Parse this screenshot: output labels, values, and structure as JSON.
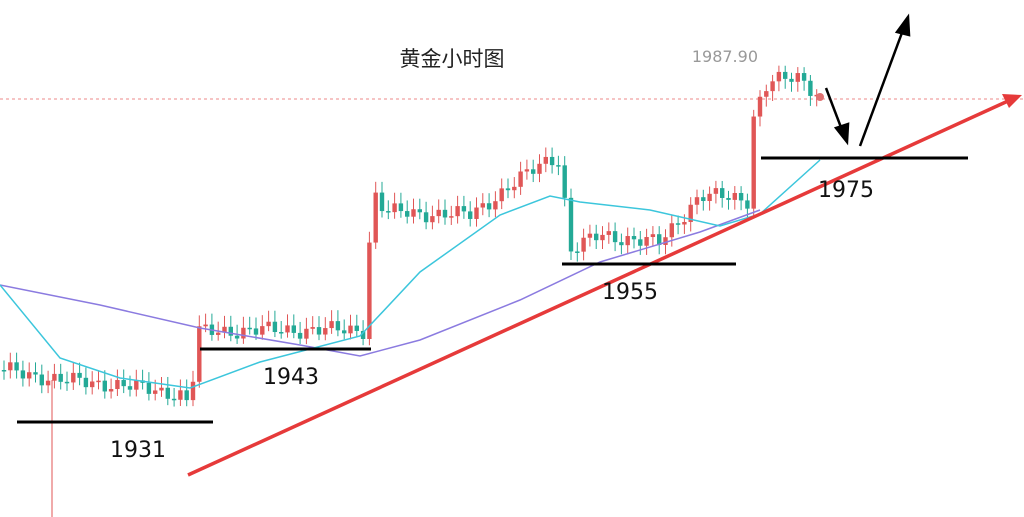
{
  "title": "黄金小时图",
  "price_label": "1987.90",
  "levels": [
    1931,
    1943,
    1955,
    1975
  ]
}
